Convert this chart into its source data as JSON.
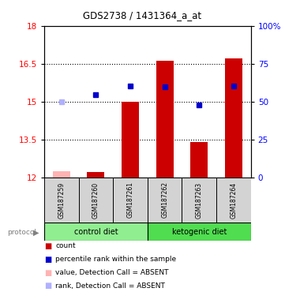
{
  "title": "GDS2738 / 1431364_a_at",
  "samples": [
    "GSM187259",
    "GSM187260",
    "GSM187261",
    "GSM187262",
    "GSM187263",
    "GSM187264"
  ],
  "bar_values": [
    12.25,
    12.2,
    15.0,
    16.6,
    13.4,
    16.7
  ],
  "bar_colors": [
    "#ffb3b3",
    "#cc0000",
    "#cc0000",
    "#cc0000",
    "#cc0000",
    "#cc0000"
  ],
  "dot_values": [
    14.99,
    15.28,
    15.6,
    15.58,
    14.85,
    15.6
  ],
  "dot_colors": [
    "#b0b0ff",
    "#0000cc",
    "#0000cc",
    "#0000cc",
    "#0000cc",
    "#0000cc"
  ],
  "ylim_left": [
    12,
    18
  ],
  "ylim_right": [
    0,
    100
  ],
  "yticks_left": [
    12,
    13.5,
    15,
    16.5,
    18
  ],
  "yticks_right": [
    0,
    25,
    50,
    75,
    100
  ],
  "ytick_labels_left": [
    "12",
    "13.5",
    "15",
    "16.5",
    "18"
  ],
  "ytick_labels_right": [
    "0",
    "25",
    "50",
    "75",
    "100%"
  ],
  "bar_bottom": 12,
  "bar_width": 0.5,
  "group_colors": [
    "#90ee90",
    "#50dd50"
  ],
  "group_labels": [
    "control diet",
    "ketogenic diet"
  ],
  "legend_items": [
    {
      "color": "#cc0000",
      "label": "count",
      "marker": "s"
    },
    {
      "color": "#0000cc",
      "label": "percentile rank within the sample",
      "marker": "s"
    },
    {
      "color": "#ffb3b3",
      "label": "value, Detection Call = ABSENT",
      "marker": "s"
    },
    {
      "color": "#b0b0ff",
      "label": "rank, Detection Call = ABSENT",
      "marker": "s"
    }
  ],
  "background_color": "#ffffff",
  "xticklabel_box_color": "#d3d3d3"
}
